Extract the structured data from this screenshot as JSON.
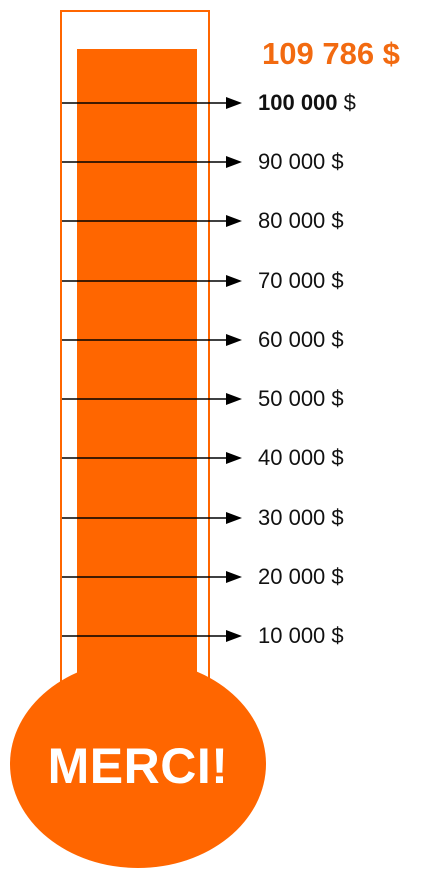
{
  "thermometer": {
    "total_raised": "109 786 $",
    "bulb_label": "MERCI!",
    "goal_amount": "100 000",
    "currency": "$",
    "fill_fraction_of_goal": 1.0978,
    "colors": {
      "fill": "#ff6600",
      "total_text": "#f26a10",
      "marker_text": "#111111"
    },
    "markers": [
      {
        "amount": "100 000",
        "currency": "$",
        "value": 100000,
        "goal": true
      },
      {
        "amount": "90 000",
        "currency": "$",
        "value": 90000,
        "goal": false
      },
      {
        "amount": "80 000",
        "currency": "$",
        "value": 80000,
        "goal": false
      },
      {
        "amount": "70 000",
        "currency": "$",
        "value": 70000,
        "goal": false
      },
      {
        "amount": "60 000",
        "currency": "$",
        "value": 60000,
        "goal": false
      },
      {
        "amount": "50 000",
        "currency": "$",
        "value": 50000,
        "goal": false
      },
      {
        "amount": "40 000",
        "currency": "$",
        "value": 40000,
        "goal": false
      },
      {
        "amount": "30 000",
        "currency": "$",
        "value": 30000,
        "goal": false
      },
      {
        "amount": "20 000",
        "currency": "$",
        "value": 20000,
        "goal": false
      },
      {
        "amount": "10 000",
        "currency": "$",
        "value": 10000,
        "goal": false
      }
    ]
  }
}
